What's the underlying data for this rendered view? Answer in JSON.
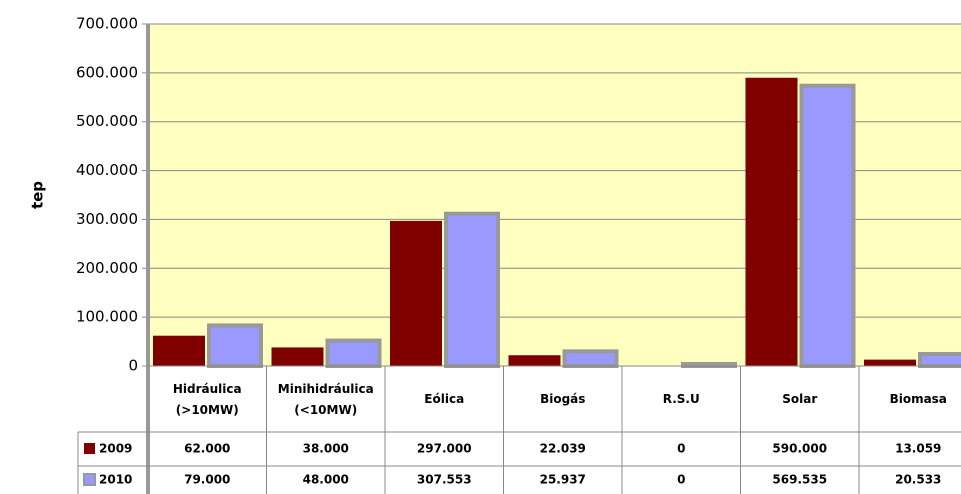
{
  "chart_data": {
    "type": "bar",
    "ylabel": "tep",
    "categories": [
      "Hidráulica (>10MW)",
      "Minihidráulica (<10MW)",
      "Eólica",
      "Biogás",
      "R.S.U",
      "Solar",
      "Biomasa"
    ],
    "series": [
      {
        "name": "2009",
        "color": "#800000",
        "values": [
          62000,
          38000,
          297000,
          22039,
          0,
          590000,
          13059
        ],
        "value_labels": [
          "62.000",
          "38.000",
          "297.000",
          "22.039",
          "0",
          "590.000",
          "13.059"
        ]
      },
      {
        "name": "2010",
        "color": "#9999ff",
        "values": [
          79000,
          48000,
          307553,
          25937,
          0,
          569535,
          20533
        ],
        "value_labels": [
          "79.000",
          "48.000",
          "307.553",
          "25.937",
          "0",
          "569.535",
          "20.533"
        ]
      }
    ],
    "ylim": [
      0,
      700000
    ],
    "yticks": [
      0,
      {
        "value": 100000,
        "label": "100.000"
      },
      {
        "value": 200000,
        "label": "200.000"
      },
      {
        "value": 300000,
        "label": "300.000"
      },
      {
        "value": 400000,
        "label": "400.000"
      },
      {
        "value": 500000,
        "label": "500.000"
      },
      {
        "value": 600000,
        "label": "600.000"
      },
      {
        "value": 700000,
        "label": "700.000"
      }
    ],
    "grid": true
  }
}
